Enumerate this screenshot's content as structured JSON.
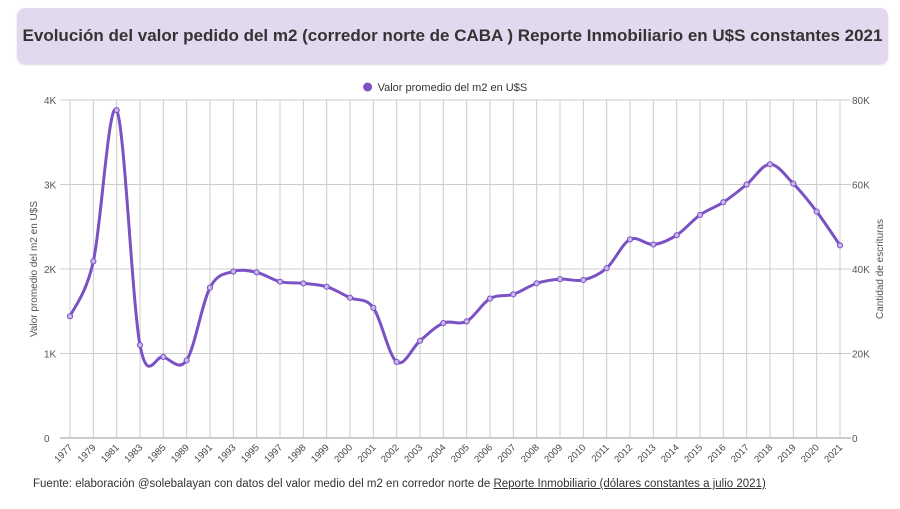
{
  "title": "Evolución del valor pedido del m2 (corredor norte de CABA ) Reporte Inmobiliario en U$S constantes 2021",
  "legend_label": "Valor promedio del m2 en U$S",
  "source": {
    "prefix": "Fuente: elaboración @solebalayan con datos del valor medio del m2 en corredor norte de ",
    "link_text": "Reporte Inmobiliario (dólares constantes a julio 2021)"
  },
  "colors": {
    "series": "#7b52c4",
    "title_bg": "#e3d9ef",
    "grid": "#cccccc"
  },
  "chart_data": {
    "type": "line",
    "title": "Evolución del valor pedido del m2 (corredor norte de CABA ) Reporte Inmobiliario en U$S constantes 2021",
    "ylabel": "Valor promedio del m2 en U$S",
    "y2label": "Cantidad de escrituras",
    "ylim": [
      0,
      4000
    ],
    "y2lim": [
      0,
      80000
    ],
    "yticks": [
      "0",
      "1K",
      "2K",
      "3K",
      "4K"
    ],
    "y2ticks": [
      "0",
      "20K",
      "40K",
      "60K",
      "80K"
    ],
    "grid": true,
    "legend_position": "top",
    "categories": [
      "1977",
      "1979",
      "1981",
      "1983",
      "1985",
      "1989",
      "1991",
      "1993",
      "1995",
      "1997",
      "1998",
      "1999",
      "2000",
      "2001",
      "2002",
      "2003",
      "2004",
      "2005",
      "2006",
      "2007",
      "2008",
      "2009",
      "2010",
      "2011",
      "2012",
      "2013",
      "2014",
      "2015",
      "2016",
      "2017",
      "2018",
      "2019",
      "2020",
      "2021"
    ],
    "series": [
      {
        "name": "Valor promedio del m2 en U$S",
        "values": [
          1440,
          2090,
          3880,
          1100,
          960,
          920,
          1780,
          1970,
          1960,
          1850,
          1830,
          1790,
          1660,
          1540,
          900,
          1150,
          1360,
          1380,
          1650,
          1700,
          1830,
          1880,
          1870,
          2010,
          2350,
          2290,
          2400,
          2640,
          2790,
          3000,
          3240,
          3010,
          2680,
          2280
        ]
      }
    ]
  }
}
